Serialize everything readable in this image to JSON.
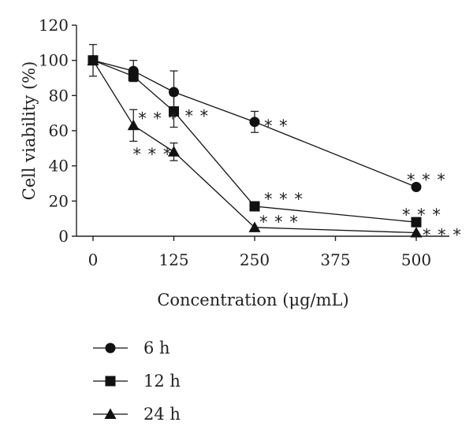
{
  "chart_data": {
    "type": "line",
    "xlabel": "Concentration (μg/mL)",
    "ylabel": "Cell viability (%)",
    "xlim": [
      0,
      550
    ],
    "ylim": [
      0,
      120
    ],
    "x_ticks": [
      0,
      125,
      250,
      375,
      500
    ],
    "y_ticks": [
      0,
      20,
      40,
      60,
      80,
      100,
      120
    ],
    "x_tick_labels": [
      "0",
      "125",
      "250",
      "375",
      "500"
    ],
    "y_tick_labels": [
      "0",
      "20",
      "40",
      "60",
      "80",
      "100",
      "120"
    ],
    "legend_position": "bottom-left",
    "series": [
      {
        "name": "6 h",
        "marker": "circle",
        "points": [
          {
            "x": 0,
            "y": 100,
            "err": 0,
            "annot": ""
          },
          {
            "x": 62.5,
            "y": 94,
            "err": 6,
            "annot": ""
          },
          {
            "x": 125,
            "y": 82,
            "err": 12,
            "annot": ""
          },
          {
            "x": 250,
            "y": 65,
            "err": 6,
            "annot": "**"
          },
          {
            "x": 500,
            "y": 28,
            "err": 0,
            "annot": "***"
          }
        ]
      },
      {
        "name": "12 h",
        "marker": "square",
        "points": [
          {
            "x": 0,
            "y": 100,
            "err": 9,
            "annot": ""
          },
          {
            "x": 62.5,
            "y": 91,
            "err": 3,
            "annot": ""
          },
          {
            "x": 125,
            "y": 71,
            "err": 9,
            "annot": "**"
          },
          {
            "x": 250,
            "y": 17,
            "err": 2,
            "annot": "***"
          },
          {
            "x": 500,
            "y": 8,
            "err": 0,
            "annot": "***"
          }
        ]
      },
      {
        "name": "24 h",
        "marker": "triangle",
        "points": [
          {
            "x": 0,
            "y": 100,
            "err": 0,
            "annot": ""
          },
          {
            "x": 62.5,
            "y": 63,
            "err": 9,
            "annot": "***"
          },
          {
            "x": 125,
            "y": 48,
            "err": 5,
            "annot": "***"
          },
          {
            "x": 250,
            "y": 5,
            "err": 0,
            "annot": "***"
          },
          {
            "x": 500,
            "y": 2,
            "err": 0,
            "annot": "***"
          }
        ]
      }
    ]
  }
}
